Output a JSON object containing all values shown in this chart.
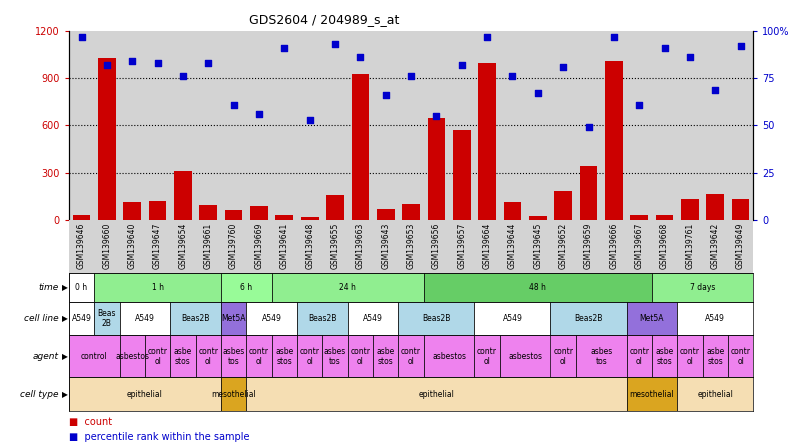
{
  "title": "GDS2604 / 204989_s_at",
  "samples": [
    "GSM139646",
    "GSM139660",
    "GSM139640",
    "GSM139647",
    "GSM139654",
    "GSM139661",
    "GSM139760",
    "GSM139669",
    "GSM139641",
    "GSM139648",
    "GSM139655",
    "GSM139663",
    "GSM139643",
    "GSM139653",
    "GSM139656",
    "GSM139657",
    "GSM139664",
    "GSM139644",
    "GSM139645",
    "GSM139652",
    "GSM139659",
    "GSM139666",
    "GSM139667",
    "GSM139668",
    "GSM139761",
    "GSM139642",
    "GSM139649"
  ],
  "counts": [
    30,
    1030,
    115,
    120,
    310,
    95,
    60,
    85,
    30,
    20,
    160,
    930,
    70,
    100,
    650,
    570,
    1000,
    115,
    25,
    185,
    340,
    1010,
    30,
    30,
    130,
    165,
    130
  ],
  "percentiles": [
    97,
    82,
    84,
    83,
    76,
    83,
    61,
    56,
    91,
    53,
    93,
    86,
    66,
    76,
    55,
    82,
    97,
    76,
    67,
    81,
    49,
    97,
    61,
    91,
    86,
    69,
    92
  ],
  "left_ylim": [
    0,
    1200
  ],
  "right_ylim": [
    0,
    100
  ],
  "left_yticks": [
    0,
    300,
    600,
    900,
    1200
  ],
  "right_yticks": [
    0,
    25,
    50,
    75,
    100
  ],
  "right_yticklabels": [
    "0",
    "25",
    "50",
    "75",
    "100%"
  ],
  "bar_color": "#cc0000",
  "dot_color": "#0000cc",
  "bg_color": "#d3d3d3",
  "time_row": {
    "label": "time",
    "segments": [
      {
        "text": "0 h",
        "start": 0,
        "end": 1,
        "color": "#ffffff"
      },
      {
        "text": "1 h",
        "start": 1,
        "end": 6,
        "color": "#90ee90"
      },
      {
        "text": "6 h",
        "start": 6,
        "end": 8,
        "color": "#98fb98"
      },
      {
        "text": "24 h",
        "start": 8,
        "end": 14,
        "color": "#90ee90"
      },
      {
        "text": "48 h",
        "start": 14,
        "end": 23,
        "color": "#66cd66"
      },
      {
        "text": "7 days",
        "start": 23,
        "end": 27,
        "color": "#90ee90"
      }
    ]
  },
  "cell_line_row": {
    "label": "cell line",
    "segments": [
      {
        "text": "A549",
        "start": 0,
        "end": 1,
        "color": "#ffffff"
      },
      {
        "text": "Beas\n2B",
        "start": 1,
        "end": 2,
        "color": "#b0d8e8"
      },
      {
        "text": "A549",
        "start": 2,
        "end": 4,
        "color": "#ffffff"
      },
      {
        "text": "Beas2B",
        "start": 4,
        "end": 6,
        "color": "#b0d8e8"
      },
      {
        "text": "Met5A",
        "start": 6,
        "end": 7,
        "color": "#9370db"
      },
      {
        "text": "A549",
        "start": 7,
        "end": 9,
        "color": "#ffffff"
      },
      {
        "text": "Beas2B",
        "start": 9,
        "end": 11,
        "color": "#b0d8e8"
      },
      {
        "text": "A549",
        "start": 11,
        "end": 13,
        "color": "#ffffff"
      },
      {
        "text": "Beas2B",
        "start": 13,
        "end": 16,
        "color": "#b0d8e8"
      },
      {
        "text": "A549",
        "start": 16,
        "end": 19,
        "color": "#ffffff"
      },
      {
        "text": "Beas2B",
        "start": 19,
        "end": 22,
        "color": "#b0d8e8"
      },
      {
        "text": "Met5A",
        "start": 22,
        "end": 24,
        "color": "#9370db"
      },
      {
        "text": "A549",
        "start": 24,
        "end": 27,
        "color": "#ffffff"
      }
    ]
  },
  "agent_row": {
    "label": "agent",
    "segments": [
      {
        "text": "control",
        "start": 0,
        "end": 2,
        "color": "#ee82ee"
      },
      {
        "text": "asbestos",
        "start": 2,
        "end": 3,
        "color": "#ee82ee"
      },
      {
        "text": "contr\nol",
        "start": 3,
        "end": 4,
        "color": "#ee82ee"
      },
      {
        "text": "asbe\nstos",
        "start": 4,
        "end": 5,
        "color": "#ee82ee"
      },
      {
        "text": "contr\nol",
        "start": 5,
        "end": 6,
        "color": "#ee82ee"
      },
      {
        "text": "asbes\ntos",
        "start": 6,
        "end": 7,
        "color": "#ee82ee"
      },
      {
        "text": "contr\nol",
        "start": 7,
        "end": 8,
        "color": "#ee82ee"
      },
      {
        "text": "asbe\nstos",
        "start": 8,
        "end": 9,
        "color": "#ee82ee"
      },
      {
        "text": "contr\nol",
        "start": 9,
        "end": 10,
        "color": "#ee82ee"
      },
      {
        "text": "asbes\ntos",
        "start": 10,
        "end": 11,
        "color": "#ee82ee"
      },
      {
        "text": "contr\nol",
        "start": 11,
        "end": 12,
        "color": "#ee82ee"
      },
      {
        "text": "asbe\nstos",
        "start": 12,
        "end": 13,
        "color": "#ee82ee"
      },
      {
        "text": "contr\nol",
        "start": 13,
        "end": 14,
        "color": "#ee82ee"
      },
      {
        "text": "asbestos",
        "start": 14,
        "end": 16,
        "color": "#ee82ee"
      },
      {
        "text": "contr\nol",
        "start": 16,
        "end": 17,
        "color": "#ee82ee"
      },
      {
        "text": "asbestos",
        "start": 17,
        "end": 19,
        "color": "#ee82ee"
      },
      {
        "text": "contr\nol",
        "start": 19,
        "end": 20,
        "color": "#ee82ee"
      },
      {
        "text": "asbes\ntos",
        "start": 20,
        "end": 22,
        "color": "#ee82ee"
      },
      {
        "text": "contr\nol",
        "start": 22,
        "end": 23,
        "color": "#ee82ee"
      },
      {
        "text": "asbe\nstos",
        "start": 23,
        "end": 24,
        "color": "#ee82ee"
      },
      {
        "text": "contr\nol",
        "start": 24,
        "end": 25,
        "color": "#ee82ee"
      },
      {
        "text": "asbe\nstos",
        "start": 25,
        "end": 26,
        "color": "#ee82ee"
      },
      {
        "text": "contr\nol",
        "start": 26,
        "end": 27,
        "color": "#ee82ee"
      }
    ]
  },
  "cell_type_row": {
    "label": "cell type",
    "segments": [
      {
        "text": "epithelial",
        "start": 0,
        "end": 6,
        "color": "#f5deb3"
      },
      {
        "text": "mesothelial",
        "start": 6,
        "end": 7,
        "color": "#daa520"
      },
      {
        "text": "epithelial",
        "start": 7,
        "end": 22,
        "color": "#f5deb3"
      },
      {
        "text": "mesothelial",
        "start": 22,
        "end": 24,
        "color": "#daa520"
      },
      {
        "text": "epithelial",
        "start": 24,
        "end": 27,
        "color": "#f5deb3"
      }
    ]
  }
}
